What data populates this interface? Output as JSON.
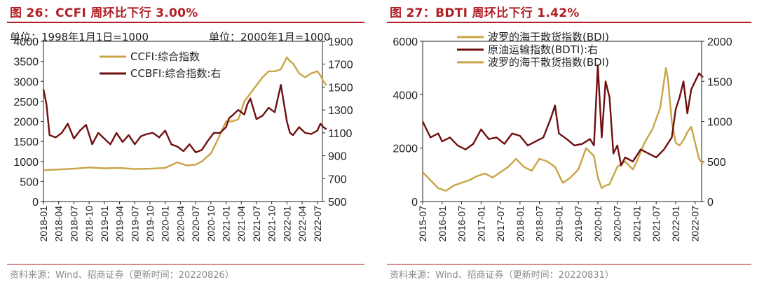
{
  "left": {
    "title": "图 26：CCFI 周环比下行 3.00%",
    "source": "资料来源：Wind、招商证券（更新时间：20220826）"
  },
  "right": {
    "title": "图 27：BDTI 周环比下行 1.42%",
    "source": "资料来源：Wind、招商证券（更新时间：20220831）"
  },
  "colors": {
    "gold": "#c9a444",
    "maroon": "#6e0f10",
    "title_red": "#b21f24"
  },
  "chart_data": [
    {
      "type": "line",
      "title": "",
      "annotations": [
        "单位：1998年1月1日=1000",
        "单位：2000年1月=1000"
      ],
      "x_ticks": [
        "2018-01",
        "2018-04",
        "2018-07",
        "2018-10",
        "2019-01",
        "2019-04",
        "2019-07",
        "2019-10",
        "2020-01",
        "2020-04",
        "2020-07",
        "2020-10",
        "2021-01",
        "2021-04",
        "2021-07",
        "2021-10",
        "2022-01",
        "2022-04",
        "2022-07"
      ],
      "x_range": [
        "2018-01",
        "2022-08"
      ],
      "y_left": {
        "range": [
          0,
          4000
        ],
        "ticks": [
          0,
          500,
          1000,
          1500,
          2000,
          2500,
          3000,
          3500,
          4000
        ]
      },
      "y_right": {
        "range": [
          500,
          1900
        ],
        "ticks": [
          500,
          700,
          900,
          1100,
          1300,
          1500,
          1700,
          1900
        ]
      },
      "legend_position": "top-center",
      "grid": false,
      "series": [
        {
          "name": "CCFI:综合指数",
          "axis": "left",
          "color": "#c9a444",
          "x": [
            2018.0,
            2018.25,
            2018.5,
            2018.75,
            2019.0,
            2019.25,
            2019.5,
            2019.75,
            2020.0,
            2020.2,
            2020.35,
            2020.5,
            2020.6,
            2020.75,
            2020.85,
            2021.0,
            2021.1,
            2021.2,
            2021.3,
            2021.45,
            2021.6,
            2021.7,
            2021.8,
            2021.9,
            2022.0,
            2022.05,
            2022.1,
            2022.2,
            2022.3,
            2022.4,
            2022.5,
            2022.55,
            2022.6,
            2022.65
          ],
          "values": [
            780,
            800,
            820,
            850,
            830,
            840,
            810,
            820,
            840,
            980,
            900,
            920,
            1000,
            1200,
            1500,
            2000,
            2000,
            2050,
            2500,
            2800,
            3100,
            3250,
            3250,
            3300,
            3600,
            3500,
            3450,
            3200,
            3100,
            3200,
            3250,
            3150,
            3000,
            2900
          ]
        },
        {
          "name": "CCBFI:综合指数:右",
          "axis": "right",
          "color": "#6e0f10",
          "x": [
            2018.0,
            2018.05,
            2018.1,
            2018.2,
            2018.3,
            2018.4,
            2018.5,
            2018.6,
            2018.7,
            2018.8,
            2018.9,
            2019.0,
            2019.1,
            2019.2,
            2019.3,
            2019.4,
            2019.5,
            2019.6,
            2019.7,
            2019.8,
            2019.9,
            2020.0,
            2020.1,
            2020.2,
            2020.3,
            2020.4,
            2020.5,
            2020.6,
            2020.7,
            2020.8,
            2020.9,
            2021.0,
            2021.05,
            2021.1,
            2021.2,
            2021.3,
            2021.35,
            2021.4,
            2021.5,
            2021.6,
            2021.7,
            2021.8,
            2021.85,
            2021.9,
            2022.0,
            2022.05,
            2022.1,
            2022.2,
            2022.3,
            2022.4,
            2022.5,
            2022.55,
            2022.6,
            2022.65
          ],
          "values": [
            1480,
            1350,
            1080,
            1060,
            1100,
            1180,
            1050,
            1120,
            1170,
            1000,
            1100,
            1050,
            1000,
            1100,
            1020,
            1080,
            1000,
            1070,
            1090,
            1100,
            1060,
            1120,
            1000,
            980,
            940,
            1000,
            930,
            950,
            1030,
            1100,
            1100,
            1150,
            1230,
            1250,
            1300,
            1260,
            1350,
            1400,
            1220,
            1250,
            1320,
            1280,
            1400,
            1520,
            1200,
            1100,
            1080,
            1150,
            1100,
            1090,
            1120,
            1180,
            1150,
            1130
          ]
        }
      ]
    },
    {
      "type": "line",
      "title": "",
      "x_ticks": [
        "2015-07",
        "2016-01",
        "2016-07",
        "2017-01",
        "2017-07",
        "2018-01",
        "2018-07",
        "2019-01",
        "2019-07",
        "2020-01",
        "2020-07",
        "2021-01",
        "2021-07",
        "2022-01",
        "2022-07"
      ],
      "x_range": [
        "2015-07",
        "2022-09"
      ],
      "y_left": {
        "range": [
          0,
          6000
        ],
        "ticks": [
          0,
          2000,
          4000,
          6000
        ]
      },
      "y_right": {
        "range": [
          0,
          2000
        ],
        "ticks": [
          0,
          500,
          1000,
          1500,
          2000
        ]
      },
      "legend_position": "top-center",
      "grid": false,
      "series": [
        {
          "name": "波罗的海干散货指数(BDI)",
          "axis": "left",
          "color": "#c9a444",
          "x": [
            2015.5,
            2015.7,
            2015.9,
            2016.1,
            2016.3,
            2016.5,
            2016.7,
            2016.9,
            2017.1,
            2017.3,
            2017.5,
            2017.7,
            2017.9,
            2018.1,
            2018.3,
            2018.5,
            2018.7,
            2018.9,
            2019.1,
            2019.3,
            2019.5,
            2019.7,
            2019.9,
            2020.0,
            2020.1,
            2020.2,
            2020.3,
            2020.5,
            2020.7,
            2020.9,
            2021.0,
            2021.2,
            2021.4,
            2021.6,
            2021.75,
            2021.8,
            2021.9,
            2022.0,
            2022.1,
            2022.2,
            2022.3,
            2022.4,
            2022.5,
            2022.6,
            2022.7
          ],
          "values": [
            1100,
            800,
            500,
            400,
            600,
            700,
            800,
            950,
            1050,
            900,
            1100,
            1300,
            1600,
            1300,
            1150,
            1600,
            1500,
            1300,
            700,
            900,
            1200,
            2000,
            1700,
            900,
            500,
            600,
            650,
            1300,
            1500,
            1200,
            1500,
            2200,
            2700,
            3500,
            5000,
            4600,
            3000,
            2200,
            2100,
            2300,
            2600,
            2800,
            2200,
            1600,
            1400
          ]
        },
        {
          "name": "原油运输指数(BDTI):右",
          "axis": "right",
          "color": "#6e0f10",
          "x": [
            2015.5,
            2015.7,
            2015.9,
            2016.0,
            2016.2,
            2016.4,
            2016.6,
            2016.8,
            2017.0,
            2017.2,
            2017.4,
            2017.6,
            2017.8,
            2018.0,
            2018.2,
            2018.4,
            2018.6,
            2018.8,
            2018.9,
            2019.0,
            2019.2,
            2019.4,
            2019.6,
            2019.8,
            2019.9,
            2020.0,
            2020.1,
            2020.2,
            2020.3,
            2020.4,
            2020.5,
            2020.6,
            2020.7,
            2020.9,
            2021.1,
            2021.3,
            2021.5,
            2021.7,
            2021.9,
            2022.0,
            2022.1,
            2022.2,
            2022.3,
            2022.4,
            2022.5,
            2022.6,
            2022.7
          ],
          "values": [
            1000,
            800,
            850,
            750,
            800,
            700,
            650,
            720,
            900,
            780,
            800,
            720,
            850,
            820,
            700,
            750,
            800,
            1050,
            1200,
            850,
            780,
            700,
            720,
            780,
            700,
            1700,
            800,
            1500,
            1300,
            600,
            700,
            450,
            550,
            500,
            650,
            600,
            550,
            650,
            800,
            1150,
            1300,
            1500,
            1100,
            1400,
            1500,
            1600,
            1550
          ]
        },
        {
          "name": "波罗的海干散货指数(BDI)",
          "axis": "left",
          "color": "#c9a444",
          "x": [],
          "values": []
        }
      ]
    }
  ]
}
